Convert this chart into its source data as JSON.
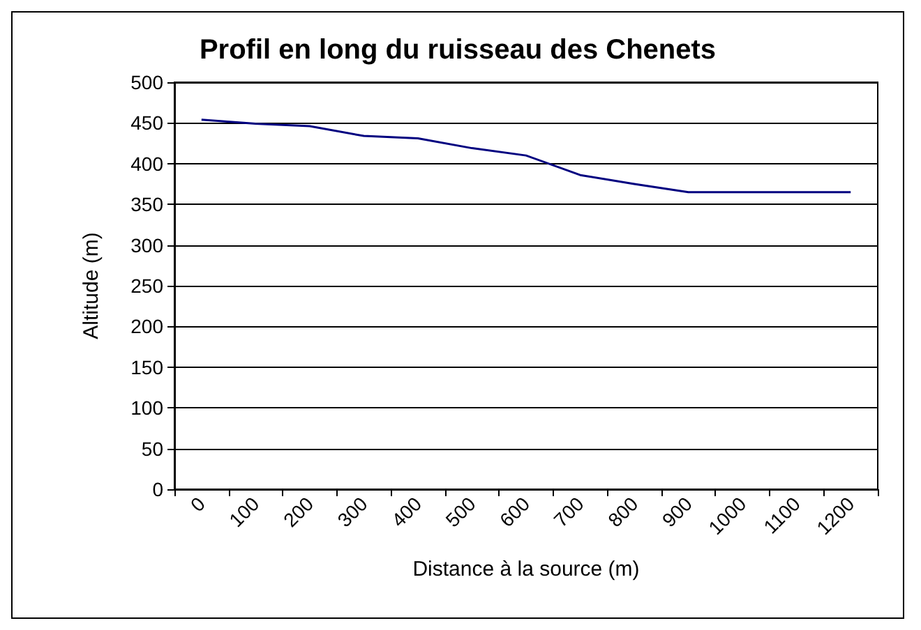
{
  "chart_data": {
    "type": "line",
    "title": "Profil en long du ruisseau des Chenets",
    "xlabel": "Distance à la source (m)",
    "ylabel": "Altitude (m)",
    "categories": [
      "0",
      "100",
      "200",
      "300",
      "400",
      "500",
      "600",
      "700",
      "800",
      "900",
      "1000",
      "1100",
      "1200"
    ],
    "series": [
      {
        "color": "#000080",
        "values": [
          454,
          449,
          446,
          434,
          431,
          419,
          410,
          386,
          375,
          365,
          365,
          365,
          365
        ]
      }
    ],
    "ylim": [
      0,
      500
    ],
    "yticks": [
      0,
      50,
      100,
      150,
      200,
      250,
      300,
      350,
      400,
      450,
      500
    ],
    "grid": "y",
    "marker": "none",
    "line_style": "solid"
  }
}
